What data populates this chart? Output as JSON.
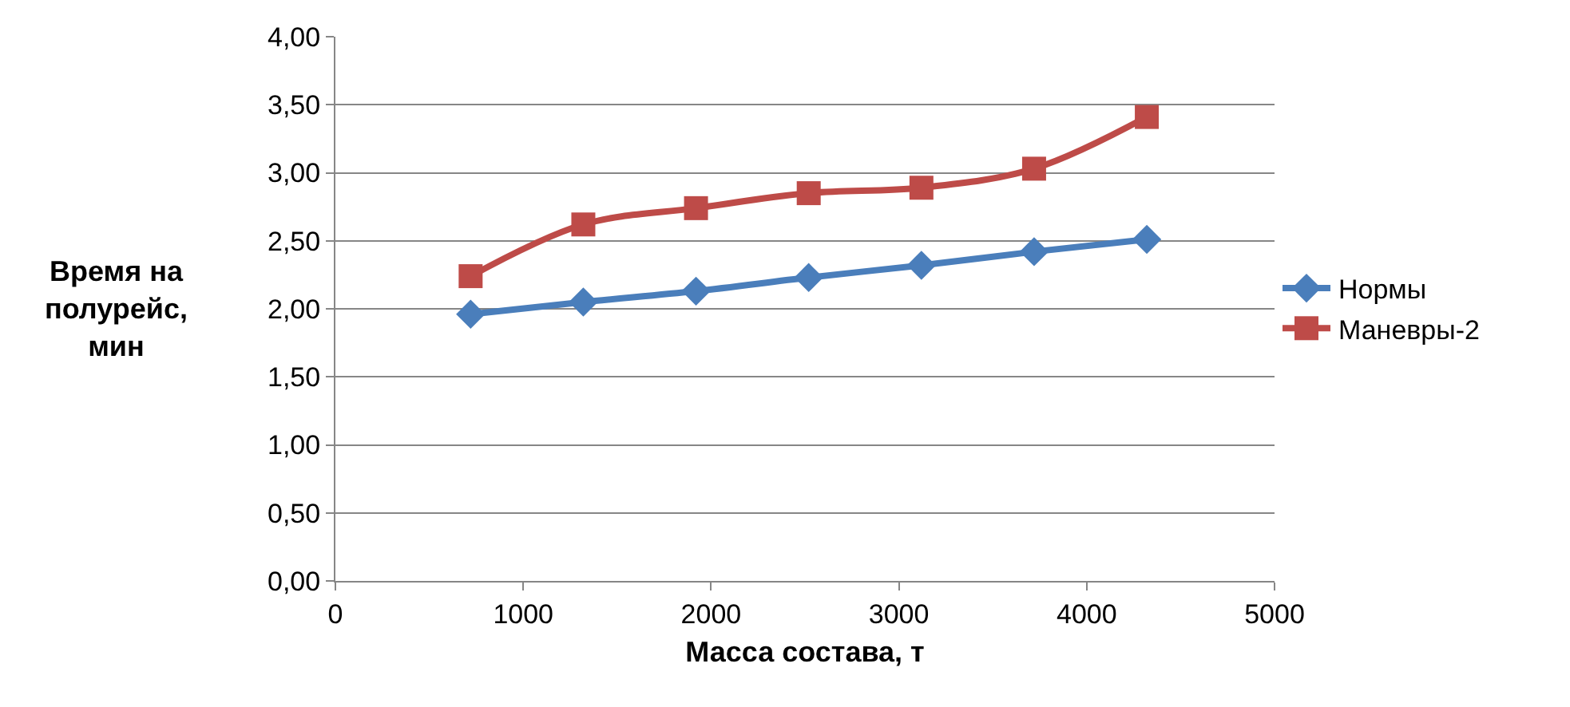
{
  "chart_data": {
    "type": "line",
    "xlabel": "Масса состава, т",
    "ylabel": "Время на полурейс, мин",
    "x": [
      720,
      1320,
      1920,
      2520,
      3120,
      3720,
      4320
    ],
    "series": [
      {
        "name": "Нормы",
        "color": "#4a7ebb",
        "marker": "diamond",
        "values": [
          1.96,
          2.05,
          2.13,
          2.23,
          2.32,
          2.42,
          2.51
        ]
      },
      {
        "name": "Маневры-2",
        "color": "#be4b48",
        "marker": "square",
        "values": [
          2.24,
          2.62,
          2.74,
          2.85,
          2.89,
          3.03,
          3.41
        ]
      }
    ],
    "xlim": [
      0,
      5000
    ],
    "xticks": [
      0,
      1000,
      2000,
      3000,
      4000,
      5000
    ],
    "ylim": [
      0,
      4
    ],
    "yticks": [
      {
        "value": 0,
        "label": "0,00"
      },
      {
        "value": 0.5,
        "label": "0,50"
      },
      {
        "value": 1,
        "label": "1,00"
      },
      {
        "value": 1.5,
        "label": "1,50"
      },
      {
        "value": 2,
        "label": "2,00"
      },
      {
        "value": 2.5,
        "label": "2,50"
      },
      {
        "value": 3,
        "label": "3,00"
      },
      {
        "value": 3.5,
        "label": "3,50"
      },
      {
        "value": 4,
        "label": "4,00"
      }
    ],
    "grid": "y",
    "legend": "right"
  }
}
